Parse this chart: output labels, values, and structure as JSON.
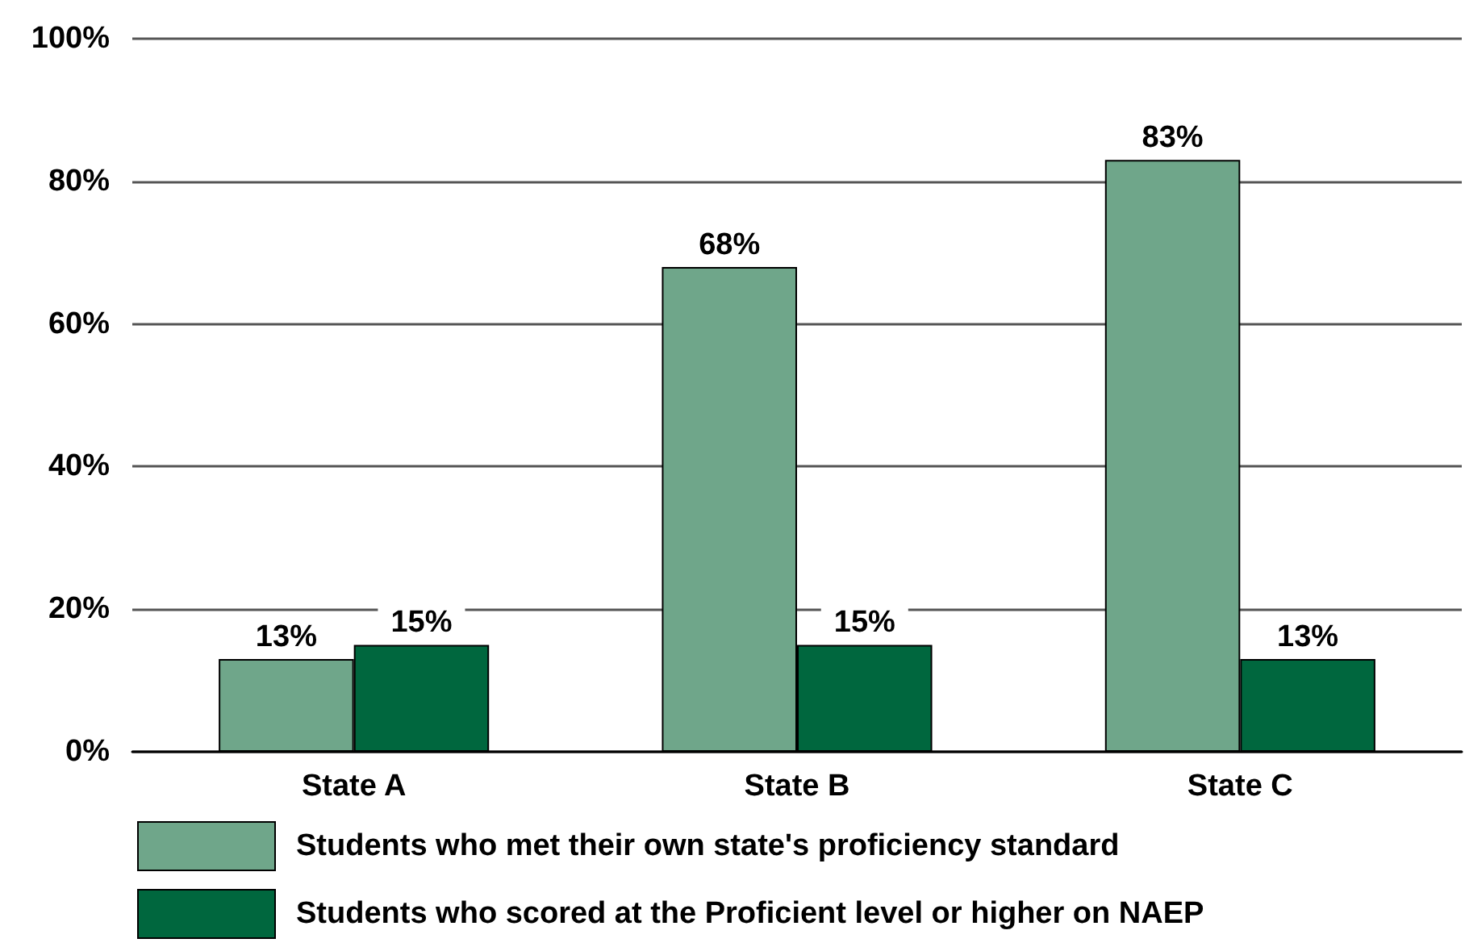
{
  "chart_data": {
    "type": "bar",
    "categories": [
      "State A",
      "State B",
      "State C"
    ],
    "series": [
      {
        "name": "Students who met their own state's proficiency standard",
        "color": "#6fa68a",
        "values": [
          13,
          68,
          83
        ],
        "value_labels": [
          "13%",
          "68%",
          "83%"
        ]
      },
      {
        "name": "Students who scored at the Proficient level or higher on NAEP",
        "color": "#00673e",
        "values": [
          15,
          15,
          13
        ],
        "value_labels": [
          "15%",
          "15%",
          "13%"
        ]
      }
    ],
    "ylim": [
      0,
      100
    ],
    "yticks": [
      {
        "value": 0,
        "label": "0%"
      },
      {
        "value": 20,
        "label": "20%"
      },
      {
        "value": 40,
        "label": "40%"
      },
      {
        "value": 60,
        "label": "60%"
      },
      {
        "value": 80,
        "label": "80%"
      },
      {
        "value": 100,
        "label": "100%"
      }
    ],
    "grid": "y",
    "legend": "bottom left"
  }
}
